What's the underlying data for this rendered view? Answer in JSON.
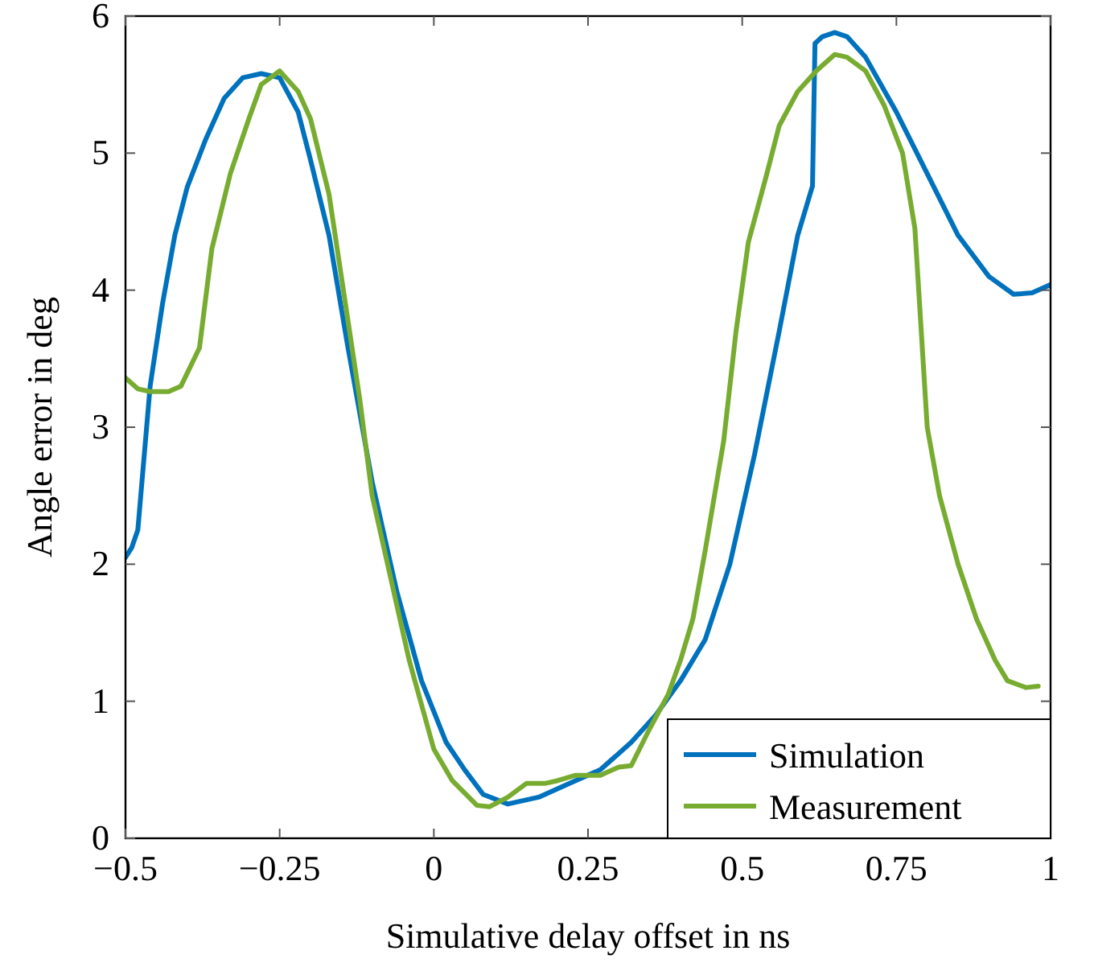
{
  "chart_data": {
    "type": "line",
    "xlabel": "Simulative delay offset in ns",
    "ylabel": "Angle error in deg",
    "xlim": [
      -0.5,
      1
    ],
    "ylim": [
      0,
      6
    ],
    "xticks": [
      -0.5,
      -0.25,
      0,
      0.25,
      0.5,
      0.75,
      1
    ],
    "yticks": [
      0,
      1,
      2,
      3,
      4,
      5,
      6
    ],
    "grid": false,
    "legend": "bottom right",
    "marker": "none",
    "line_style": "solid",
    "series": [
      {
        "name": "Simulation",
        "color": "#0072bd",
        "x": [
          -0.5,
          -0.49,
          -0.48,
          -0.46,
          -0.44,
          -0.42,
          -0.4,
          -0.37,
          -0.34,
          -0.31,
          -0.28,
          -0.25,
          -0.22,
          -0.2,
          -0.17,
          -0.14,
          -0.1,
          -0.06,
          -0.02,
          0.02,
          0.05,
          0.08,
          0.12,
          0.17,
          0.22,
          0.27,
          0.32,
          0.36,
          0.4,
          0.44,
          0.48,
          0.52,
          0.56,
          0.59,
          0.614,
          0.618,
          0.63,
          0.65,
          0.67,
          0.7,
          0.75,
          0.8,
          0.85,
          0.9,
          0.94,
          0.97,
          1
        ],
        "values": [
          2.05,
          2.12,
          2.25,
          3.3,
          3.9,
          4.4,
          4.75,
          5.1,
          5.4,
          5.55,
          5.58,
          5.55,
          5.3,
          4.95,
          4.4,
          3.6,
          2.6,
          1.8,
          1.15,
          0.7,
          0.5,
          0.32,
          0.25,
          0.3,
          0.4,
          0.5,
          0.7,
          0.9,
          1.15,
          1.45,
          2,
          2.8,
          3.7,
          4.4,
          4.76,
          5.8,
          5.85,
          5.88,
          5.85,
          5.7,
          5.3,
          4.85,
          4.4,
          4.1,
          3.97,
          3.98,
          4.04
        ]
      },
      {
        "name": "Measurement",
        "color": "#77ac30",
        "x": [
          -0.5,
          -0.48,
          -0.46,
          -0.43,
          -0.41,
          -0.38,
          -0.36,
          -0.33,
          -0.3,
          -0.28,
          -0.25,
          -0.22,
          -0.2,
          -0.17,
          -0.15,
          -0.12,
          -0.1,
          -0.07,
          -0.04,
          0,
          0.03,
          0.07,
          0.09,
          0.12,
          0.15,
          0.18,
          0.2,
          0.23,
          0.27,
          0.3,
          0.32,
          0.35,
          0.38,
          0.4,
          0.42,
          0.44,
          0.47,
          0.49,
          0.51,
          0.54,
          0.56,
          0.59,
          0.62,
          0.65,
          0.67,
          0.7,
          0.73,
          0.76,
          0.78,
          0.8,
          0.82,
          0.85,
          0.88,
          0.91,
          0.93,
          0.96,
          0.98
        ],
        "values": [
          3.36,
          3.28,
          3.26,
          3.26,
          3.3,
          3.58,
          4.3,
          4.85,
          5.25,
          5.5,
          5.6,
          5.45,
          5.25,
          4.7,
          4.1,
          3.2,
          2.5,
          1.9,
          1.3,
          0.65,
          0.42,
          0.24,
          0.23,
          0.3,
          0.4,
          0.4,
          0.42,
          0.46,
          0.46,
          0.52,
          0.53,
          0.8,
          1.05,
          1.3,
          1.6,
          2.1,
          2.9,
          3.7,
          4.35,
          4.85,
          5.2,
          5.45,
          5.6,
          5.72,
          5.7,
          5.6,
          5.35,
          5,
          4.45,
          3,
          2.5,
          2,
          1.6,
          1.3,
          1.15,
          1.1,
          1.11
        ]
      }
    ]
  }
}
